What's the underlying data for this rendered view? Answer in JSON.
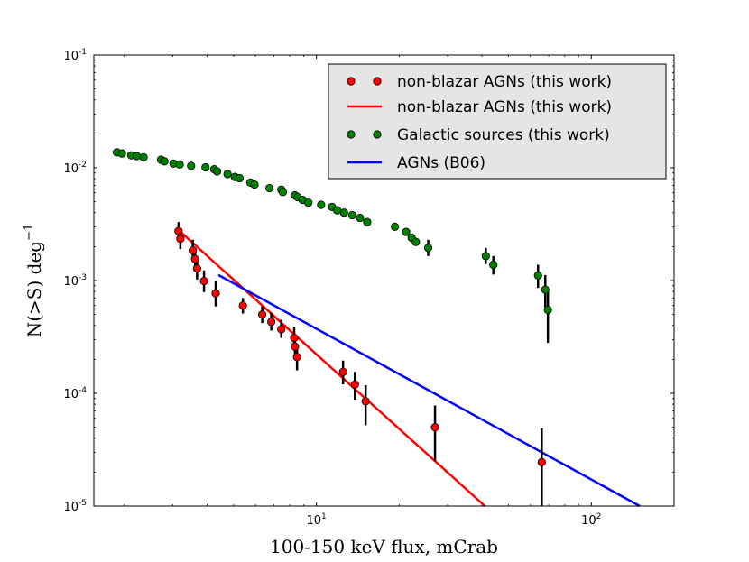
{
  "chart_data": {
    "type": "scatter",
    "xscale": "log",
    "yscale": "log",
    "xlim": [
      1.55,
      200
    ],
    "ylim": [
      1e-05,
      0.1
    ],
    "xlabel": "100-150 keV flux, mCrab",
    "ylabel": "N(>S) deg",
    "ylabel_exp": "−1",
    "x_ticks": [
      {
        "value": 10,
        "base": "10",
        "exp": "1"
      },
      {
        "value": 100,
        "base": "10",
        "exp": "2"
      }
    ],
    "y_ticks": [
      {
        "value": 0.1,
        "base": "10",
        "exp": "-1"
      },
      {
        "value": 0.01,
        "base": "10",
        "exp": "-2"
      },
      {
        "value": 0.001,
        "base": "10",
        "exp": "-3"
      },
      {
        "value": 0.0001,
        "base": "10",
        "exp": "-4"
      },
      {
        "value": 1e-05,
        "base": "10",
        "exp": "-5"
      }
    ],
    "legend": {
      "position": "upper right",
      "entries": [
        {
          "label": "non-blazar AGNs (this work)",
          "kind": "points",
          "color": "#ff0000"
        },
        {
          "label": "non-blazar AGNs (this work)",
          "kind": "line",
          "color": "#ff0000"
        },
        {
          "label": "Galactic sources (this work)",
          "kind": "points",
          "color": "#008000"
        },
        {
          "label": "AGNs (B06)",
          "kind": "line",
          "color": "#0000ff"
        }
      ]
    },
    "series": [
      {
        "name": "non-blazar AGNs (this work)",
        "kind": "points",
        "color": "#ff0000",
        "points": [
          {
            "x": 3.15,
            "y": 0.00275,
            "lo": 0.0022,
            "hi": 0.0033
          },
          {
            "x": 3.2,
            "y": 0.00235,
            "lo": 0.0019,
            "hi": 0.0029
          },
          {
            "x": 3.55,
            "y": 0.00185,
            "lo": 0.0015,
            "hi": 0.0023
          },
          {
            "x": 3.62,
            "y": 0.00155,
            "lo": 0.00125,
            "hi": 0.0019
          },
          {
            "x": 3.68,
            "y": 0.00128,
            "lo": 0.00102,
            "hi": 0.0016
          },
          {
            "x": 3.9,
            "y": 0.00099,
            "lo": 0.00079,
            "hi": 0.00123
          },
          {
            "x": 4.3,
            "y": 0.00077,
            "lo": 0.00059,
            "hi": 0.00099
          },
          {
            "x": 5.4,
            "y": 0.0006,
            "lo": 0.00051,
            "hi": 0.0007
          },
          {
            "x": 6.35,
            "y": 0.0005,
            "lo": 0.00042,
            "hi": 0.00059
          },
          {
            "x": 6.85,
            "y": 0.00043,
            "lo": 0.00036,
            "hi": 0.00052
          },
          {
            "x": 7.45,
            "y": 0.00037,
            "lo": 0.00031,
            "hi": 0.00045
          },
          {
            "x": 8.3,
            "y": 0.00031,
            "lo": 0.00025,
            "hi": 0.00039
          },
          {
            "x": 8.35,
            "y": 0.00026,
            "lo": 0.0002,
            "hi": 0.00033
          },
          {
            "x": 8.5,
            "y": 0.00021,
            "lo": 0.00016,
            "hi": 0.00027
          },
          {
            "x": 12.5,
            "y": 0.000155,
            "lo": 0.00012,
            "hi": 0.000195
          },
          {
            "x": 13.8,
            "y": 0.00012,
            "lo": 8.8e-05,
            "hi": 0.000155
          },
          {
            "x": 15.1,
            "y": 8.5e-05,
            "lo": 5.2e-05,
            "hi": 0.000118
          },
          {
            "x": 27.0,
            "y": 5e-05,
            "lo": 2.5e-05,
            "hi": 7.8e-05
          },
          {
            "x": 66.0,
            "y": 2.45e-05,
            "lo": 1e-05,
            "hi": 4.9e-05
          }
        ]
      },
      {
        "name": "non-blazar AGNs (this work)",
        "kind": "line",
        "color": "#ff0000",
        "x": [
          3.15,
          41.0
        ],
        "y": [
          0.0028,
          1e-05
        ]
      },
      {
        "name": "Galactic sources (this work)",
        "kind": "points",
        "color": "#008000",
        "points": [
          {
            "x": 1.88,
            "y": 0.0137
          },
          {
            "x": 1.96,
            "y": 0.0134
          },
          {
            "x": 2.12,
            "y": 0.0129
          },
          {
            "x": 2.22,
            "y": 0.0127
          },
          {
            "x": 2.35,
            "y": 0.0124
          },
          {
            "x": 2.72,
            "y": 0.0118
          },
          {
            "x": 2.8,
            "y": 0.0114
          },
          {
            "x": 3.02,
            "y": 0.0109
          },
          {
            "x": 3.18,
            "y": 0.0107
          },
          {
            "x": 3.5,
            "y": 0.0104
          },
          {
            "x": 3.95,
            "y": 0.0101
          },
          {
            "x": 4.25,
            "y": 0.0097
          },
          {
            "x": 4.35,
            "y": 0.0093
          },
          {
            "x": 4.75,
            "y": 0.0088
          },
          {
            "x": 5.05,
            "y": 0.0083
          },
          {
            "x": 5.25,
            "y": 0.0081
          },
          {
            "x": 5.75,
            "y": 0.0074
          },
          {
            "x": 5.95,
            "y": 0.0071
          },
          {
            "x": 6.75,
            "y": 0.0066
          },
          {
            "x": 7.45,
            "y": 0.0064
          },
          {
            "x": 7.55,
            "y": 0.0061
          },
          {
            "x": 8.35,
            "y": 0.0057
          },
          {
            "x": 8.55,
            "y": 0.0055
          },
          {
            "x": 8.9,
            "y": 0.0052
          },
          {
            "x": 9.35,
            "y": 0.0049
          },
          {
            "x": 10.4,
            "y": 0.0047
          },
          {
            "x": 11.4,
            "y": 0.0045
          },
          {
            "x": 11.9,
            "y": 0.0042
          },
          {
            "x": 12.6,
            "y": 0.004
          },
          {
            "x": 13.5,
            "y": 0.0038
          },
          {
            "x": 14.4,
            "y": 0.0036
          },
          {
            "x": 15.3,
            "y": 0.0033
          },
          {
            "x": 19.3,
            "y": 0.003
          },
          {
            "x": 21.2,
            "y": 0.0027
          },
          {
            "x": 22.2,
            "y": 0.0024
          },
          {
            "x": 23.0,
            "y": 0.0022
          },
          {
            "x": 25.5,
            "y": 0.00195,
            "lo": 0.00165,
            "hi": 0.0023
          },
          {
            "x": 41.3,
            "y": 0.00165,
            "lo": 0.0014,
            "hi": 0.00195
          },
          {
            "x": 44.0,
            "y": 0.00138,
            "lo": 0.00113,
            "hi": 0.00165
          },
          {
            "x": 64.0,
            "y": 0.00111,
            "lo": 0.00086,
            "hi": 0.00138
          },
          {
            "x": 68.0,
            "y": 0.00083,
            "lo": 0.00058,
            "hi": 0.00112
          },
          {
            "x": 69.5,
            "y": 0.00055,
            "lo": 0.00028,
            "hi": 0.00083
          }
        ]
      },
      {
        "name": "AGNs (B06)",
        "kind": "line",
        "color": "#0000ff",
        "x": [
          4.4,
          150.0
        ],
        "y": [
          0.00112,
          1e-05
        ]
      }
    ]
  }
}
